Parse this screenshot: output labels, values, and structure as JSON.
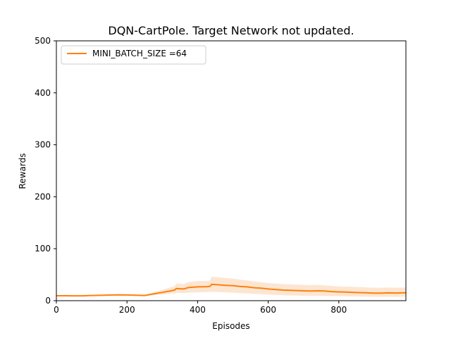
{
  "chart_data": {
    "type": "line",
    "title": "DQN-CartPole. Target Network not updated.",
    "xlabel": "Episodes",
    "ylabel": "Rewards",
    "xlim": [
      0,
      990
    ],
    "ylim": [
      0,
      500
    ],
    "xticks": [
      0,
      200,
      400,
      600,
      800
    ],
    "yticks": [
      0,
      100,
      200,
      300,
      400,
      500
    ],
    "grid": false,
    "legend": "top-left",
    "colors": {
      "line": "#ff7f0e",
      "band": "#fde6d1",
      "axes": "#000000"
    },
    "series": [
      {
        "name": "MINI_BATCH_SIZE =64",
        "x": [
          0,
          25,
          50,
          75,
          100,
          125,
          150,
          175,
          200,
          225,
          250,
          275,
          300,
          325,
          335,
          340,
          360,
          375,
          400,
          425,
          435,
          440,
          460,
          480,
          500,
          520,
          540,
          560,
          580,
          600,
          620,
          640,
          660,
          680,
          700,
          720,
          740,
          760,
          780,
          800,
          820,
          840,
          860,
          880,
          900,
          920,
          940,
          960,
          980,
          990
        ],
        "values": [
          9.5,
          9.5,
          9.4,
          9.3,
          10.0,
          10.3,
          10.8,
          11.2,
          11.0,
          10.5,
          10.0,
          13.0,
          16.0,
          19.0,
          20.5,
          23.5,
          22.5,
          25.5,
          26.5,
          27.0,
          27.5,
          31.5,
          30.5,
          29.5,
          29.0,
          27.5,
          26.5,
          25.0,
          24.0,
          22.5,
          21.5,
          20.5,
          20.0,
          19.5,
          19.0,
          18.5,
          19.0,
          18.5,
          17.5,
          17.0,
          16.5,
          16.0,
          15.5,
          15.0,
          14.5,
          14.5,
          15.0,
          14.8,
          15.0,
          15.0
        ],
        "lower": [
          9.0,
          9.0,
          8.9,
          8.8,
          9.3,
          9.6,
          10.0,
          10.3,
          10.0,
          9.5,
          9.0,
          10.5,
          12.0,
          13.5,
          14.0,
          15.0,
          14.5,
          15.5,
          16.0,
          16.5,
          16.8,
          17.0,
          16.5,
          16.0,
          15.5,
          14.5,
          14.0,
          13.0,
          12.5,
          11.5,
          11.0,
          10.5,
          10.0,
          9.8,
          9.5,
          9.2,
          9.3,
          9.0,
          8.8,
          8.6,
          8.4,
          8.2,
          8.0,
          7.8,
          7.6,
          7.5,
          7.6,
          7.5,
          7.6,
          7.6
        ],
        "upper": [
          10.0,
          10.0,
          9.9,
          9.8,
          10.8,
          11.1,
          11.8,
          12.2,
          12.0,
          11.5,
          11.2,
          16.0,
          21.0,
          26.0,
          28.0,
          33.0,
          32.0,
          36.0,
          37.5,
          38.0,
          38.5,
          46.0,
          45.0,
          43.5,
          42.5,
          40.5,
          39.0,
          37.0,
          35.5,
          34.0,
          33.0,
          32.0,
          31.5,
          31.0,
          30.5,
          30.0,
          30.5,
          29.5,
          28.5,
          27.5,
          27.0,
          26.5,
          26.0,
          25.5,
          25.0,
          25.0,
          25.5,
          25.0,
          25.2,
          25.2
        ]
      }
    ]
  }
}
